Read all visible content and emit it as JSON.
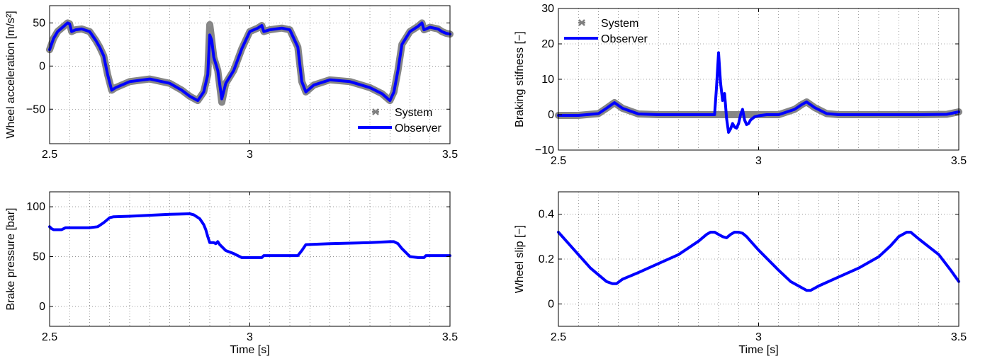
{
  "chart_data": [
    {
      "type": "line",
      "xlabel": "",
      "ylabel": "Wheel acceleration [m/s²]",
      "xlim": [
        2.5,
        3.5
      ],
      "ylim": [
        -90,
        70
      ],
      "xticks": [
        2.5,
        3,
        3.5
      ],
      "xtick_labels": [
        "2.5",
        "3",
        "3.5"
      ],
      "yticks": [
        -50,
        0,
        50
      ],
      "ytick_labels": [
        "−50",
        "0",
        "50"
      ],
      "grid": true,
      "legend_position": "bottom-right",
      "series": [
        {
          "name": "System",
          "style": "markers",
          "color": "#7f7f7f",
          "x": [
            2.5,
            2.51,
            2.52,
            2.535,
            2.545,
            2.55,
            2.555,
            2.565,
            2.58,
            2.6,
            2.615,
            2.625,
            2.635,
            2.645,
            2.655,
            2.665,
            2.7,
            2.75,
            2.8,
            2.83,
            2.85,
            2.87,
            2.885,
            2.895,
            2.9,
            2.905,
            2.91,
            2.92,
            2.93,
            2.94,
            2.96,
            2.98,
            3.0,
            3.02,
            3.03,
            3.035,
            3.05,
            3.08,
            3.1,
            3.12,
            3.13,
            3.14,
            3.16,
            3.2,
            3.25,
            3.3,
            3.33,
            3.35,
            3.36,
            3.37,
            3.38,
            3.4,
            3.42,
            3.43,
            3.435,
            3.45,
            3.47,
            3.48,
            3.49,
            3.5
          ],
          "y": [
            19,
            32,
            40,
            46,
            50,
            49,
            40,
            42,
            43,
            40,
            30,
            22,
            12,
            -10,
            -28,
            -25,
            -18,
            -15,
            -20,
            -28,
            -35,
            -40,
            -30,
            -10,
            48,
            30,
            10,
            -5,
            -42,
            -20,
            -5,
            20,
            40,
            44,
            47,
            40,
            42,
            44,
            42,
            22,
            -18,
            -30,
            -22,
            -16,
            -18,
            -25,
            -32,
            -40,
            -30,
            -5,
            25,
            40,
            46,
            50,
            42,
            45,
            43,
            40,
            38,
            37
          ]
        },
        {
          "name": "Observer",
          "style": "line",
          "color": "#0000ff",
          "x": [
            2.5,
            2.51,
            2.52,
            2.535,
            2.545,
            2.55,
            2.555,
            2.565,
            2.58,
            2.6,
            2.615,
            2.625,
            2.635,
            2.645,
            2.655,
            2.665,
            2.7,
            2.75,
            2.8,
            2.83,
            2.85,
            2.87,
            2.885,
            2.895,
            2.9,
            2.905,
            2.91,
            2.92,
            2.93,
            2.94,
            2.96,
            2.98,
            3.0,
            3.02,
            3.03,
            3.035,
            3.05,
            3.08,
            3.1,
            3.12,
            3.13,
            3.14,
            3.16,
            3.2,
            3.25,
            3.3,
            3.33,
            3.35,
            3.36,
            3.37,
            3.38,
            3.4,
            3.42,
            3.43,
            3.435,
            3.45,
            3.47,
            3.48,
            3.49,
            3.5
          ],
          "y": [
            19,
            32,
            40,
            46,
            50,
            49,
            40,
            42,
            43,
            40,
            30,
            22,
            12,
            -10,
            -28,
            -25,
            -18,
            -15,
            -20,
            -28,
            -35,
            -40,
            -30,
            -10,
            36,
            30,
            10,
            -5,
            -38,
            -20,
            -5,
            20,
            40,
            44,
            47,
            40,
            42,
            44,
            42,
            22,
            -18,
            -30,
            -22,
            -16,
            -18,
            -25,
            -32,
            -40,
            -30,
            -5,
            25,
            40,
            46,
            50,
            42,
            45,
            43,
            40,
            38,
            37
          ]
        }
      ]
    },
    {
      "type": "line",
      "xlabel": "",
      "ylabel": "Braking stifness [−]",
      "xlim": [
        2.5,
        3.5
      ],
      "ylim": [
        -10,
        30
      ],
      "xticks": [
        2.5,
        3,
        3.5
      ],
      "xtick_labels": [
        "2.5",
        "3",
        "3.5"
      ],
      "yticks": [
        -10,
        0,
        10,
        20,
        30
      ],
      "ytick_labels": [
        "−10",
        "0",
        "10",
        "20",
        "30"
      ],
      "grid": true,
      "legend_position": "top-left",
      "series": [
        {
          "name": "System",
          "style": "markers",
          "color": "#7f7f7f",
          "x": [
            2.5,
            2.55,
            2.6,
            2.62,
            2.64,
            2.66,
            2.7,
            2.75,
            2.8,
            2.85,
            2.9,
            2.95,
            3.0,
            3.05,
            3.09,
            3.11,
            3.12,
            3.14,
            3.17,
            3.2,
            3.3,
            3.4,
            3.47,
            3.5
          ],
          "y": [
            -0.2,
            -0.2,
            0.3,
            1.8,
            3.4,
            1.8,
            0.2,
            0,
            0,
            0,
            0,
            0,
            0,
            0,
            1.5,
            3.0,
            3.6,
            2.0,
            0.3,
            0,
            0,
            0,
            0.1,
            0.8
          ]
        },
        {
          "name": "Observer",
          "style": "line",
          "color": "#0000ff",
          "x": [
            2.5,
            2.55,
            2.6,
            2.62,
            2.64,
            2.66,
            2.7,
            2.75,
            2.8,
            2.85,
            2.89,
            2.895,
            2.9,
            2.905,
            2.91,
            2.915,
            2.92,
            2.925,
            2.93,
            2.935,
            2.94,
            2.945,
            2.95,
            2.955,
            2.96,
            2.965,
            2.97,
            2.975,
            2.98,
            2.99,
            3.0,
            3.02,
            3.05,
            3.09,
            3.11,
            3.12,
            3.14,
            3.17,
            3.2,
            3.3,
            3.4,
            3.47,
            3.5
          ],
          "y": [
            -0.2,
            -0.2,
            0.3,
            1.8,
            3.4,
            1.8,
            0.2,
            0,
            0,
            0,
            0,
            8,
            17.5,
            9,
            4,
            6,
            -1,
            -5,
            -4,
            -2.5,
            -3.5,
            -3.8,
            -2.5,
            0,
            1.5,
            -1.5,
            -2.8,
            -2.5,
            -1.5,
            -0.6,
            -0.3,
            0,
            0,
            1.5,
            3.0,
            3.6,
            2.0,
            0.3,
            0,
            0,
            0,
            0.1,
            0.8
          ]
        }
      ]
    },
    {
      "type": "line",
      "xlabel": "Time [s]",
      "ylabel": "Brake pressure [bar]",
      "xlim": [
        2.5,
        3.5
      ],
      "ylim": [
        -20,
        115
      ],
      "xticks": [
        2.5,
        3,
        3.5
      ],
      "xtick_labels": [
        "2.5",
        "3",
        "3.5"
      ],
      "yticks": [
        0,
        50,
        100
      ],
      "ytick_labels": [
        "0",
        "50",
        "100"
      ],
      "grid": true,
      "series": [
        {
          "name": "",
          "style": "line",
          "color": "#0000ff",
          "x": [
            2.5,
            2.505,
            2.51,
            2.53,
            2.535,
            2.54,
            2.6,
            2.62,
            2.635,
            2.65,
            2.66,
            2.7,
            2.8,
            2.85,
            2.86,
            2.875,
            2.885,
            2.89,
            2.895,
            2.9,
            2.91,
            2.915,
            2.92,
            2.925,
            2.93,
            2.94,
            2.96,
            2.98,
            2.99,
            3.0,
            3.02,
            3.03,
            3.035,
            3.04,
            3.1,
            3.12,
            3.13,
            3.14,
            3.2,
            3.3,
            3.35,
            3.36,
            3.37,
            3.38,
            3.4,
            3.42,
            3.43,
            3.435,
            3.44,
            3.5
          ],
          "y": [
            80,
            78,
            77,
            77,
            78,
            79,
            79,
            80,
            84,
            89,
            90,
            90.5,
            92.5,
            93,
            92,
            88,
            82,
            77,
            70,
            64,
            64,
            63,
            65,
            62,
            60,
            56,
            53,
            49,
            49,
            49,
            49,
            49,
            51,
            51,
            51,
            51,
            56,
            62,
            63,
            64,
            65,
            65,
            63,
            58,
            50,
            49,
            49,
            49,
            51,
            51
          ]
        }
      ]
    },
    {
      "type": "line",
      "xlabel": "Time [s]",
      "ylabel": "Wheel slip [−]",
      "xlim": [
        2.5,
        3.5
      ],
      "ylim": [
        -0.1,
        0.5
      ],
      "xticks": [
        2.5,
        3,
        3.5
      ],
      "xtick_labels": [
        "2.5",
        "3",
        "3.5"
      ],
      "yticks": [
        0,
        0.2,
        0.4
      ],
      "ytick_labels": [
        "0",
        "0.2",
        "0.4"
      ],
      "grid": true,
      "series": [
        {
          "name": "",
          "style": "line",
          "color": "#0000ff",
          "x": [
            2.5,
            2.52,
            2.55,
            2.58,
            2.6,
            2.62,
            2.635,
            2.645,
            2.66,
            2.7,
            2.75,
            2.8,
            2.85,
            2.87,
            2.88,
            2.89,
            2.9,
            2.91,
            2.92,
            2.93,
            2.94,
            2.95,
            2.96,
            2.97,
            2.98,
            3.0,
            3.05,
            3.08,
            3.1,
            3.12,
            3.13,
            3.15,
            3.2,
            3.25,
            3.3,
            3.33,
            3.35,
            3.37,
            3.38,
            3.4,
            3.45,
            3.48,
            3.5
          ],
          "y": [
            0.32,
            0.28,
            0.22,
            0.16,
            0.13,
            0.1,
            0.09,
            0.09,
            0.11,
            0.14,
            0.18,
            0.22,
            0.28,
            0.31,
            0.32,
            0.32,
            0.31,
            0.3,
            0.295,
            0.31,
            0.32,
            0.32,
            0.315,
            0.3,
            0.28,
            0.24,
            0.15,
            0.1,
            0.08,
            0.06,
            0.06,
            0.08,
            0.12,
            0.16,
            0.21,
            0.26,
            0.3,
            0.32,
            0.32,
            0.29,
            0.22,
            0.15,
            0.1
          ]
        }
      ]
    }
  ]
}
